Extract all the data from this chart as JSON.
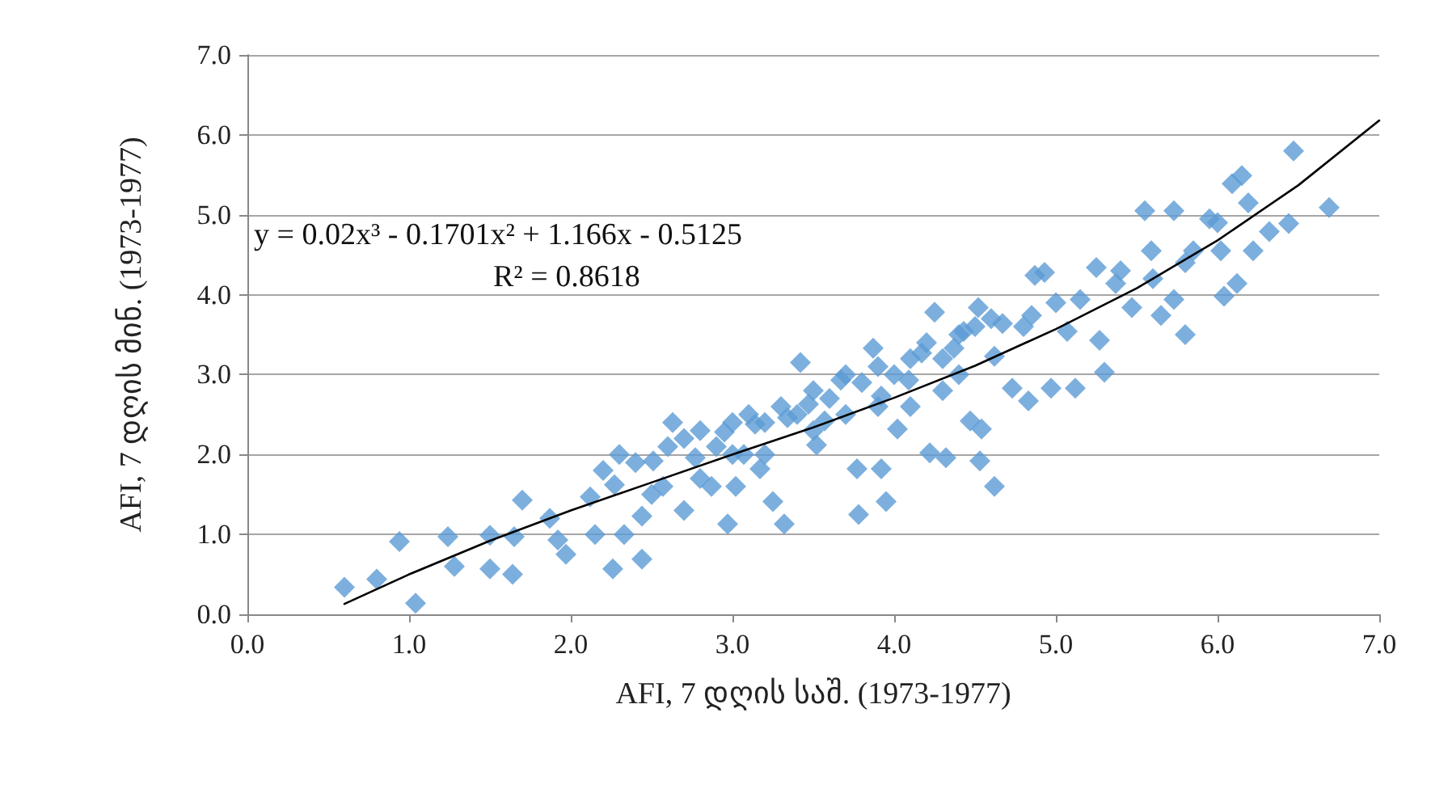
{
  "chart_data": {
    "type": "scatter",
    "xlabel": "AFI, 7 დღის საშ. (1973-1977)",
    "ylabel": "AFI, 7 დღის მინ. (1973-1977)",
    "annotations": [
      "y = 0.02x³ - 0.1701x² + 1.166x - 0.5125",
      "R² = 0.8618"
    ],
    "xlim": [
      0,
      7
    ],
    "xticks": [
      {
        "value": 0,
        "label": "0.0"
      },
      {
        "value": 1,
        "label": "1.0"
      },
      {
        "value": 2,
        "label": "2.0"
      },
      {
        "value": 3,
        "label": "3.0"
      },
      {
        "value": 4,
        "label": "4.0"
      },
      {
        "value": 5,
        "label": "5.0"
      },
      {
        "value": 6,
        "label": "6.0"
      },
      {
        "value": 7,
        "label": "7.0"
      }
    ],
    "ylim": [
      0,
      7
    ],
    "yticks": [
      {
        "value": 0,
        "label": "0.0"
      },
      {
        "value": 1,
        "label": "1.0"
      },
      {
        "value": 2,
        "label": "2.0"
      },
      {
        "value": 3,
        "label": "3.0"
      },
      {
        "value": 4,
        "label": "4.0"
      },
      {
        "value": 5,
        "label": "5.0"
      },
      {
        "value": 6,
        "label": "6.0"
      },
      {
        "value": 7,
        "label": "7.0"
      }
    ],
    "grid": "y",
    "series": [
      {
        "color": "#5b9bd5",
        "marker": "diamond",
        "x": [
          0.6,
          0.8,
          0.94,
          1.04,
          1.24,
          1.28,
          1.5,
          1.5,
          1.64,
          1.7,
          1.65,
          1.92,
          1.97,
          1.87,
          2.12,
          2.15,
          2.27,
          2.26,
          2.33,
          2.44,
          2.44,
          2.3,
          2.51,
          2.57,
          2.63,
          2.7,
          2.77,
          2.87,
          2.95,
          2.97,
          3.02,
          3.07,
          3.14,
          3.17,
          3.25,
          3.32,
          3.42,
          3.34,
          3.47,
          3.52,
          3.57,
          3.67,
          3.77,
          3.78,
          3.87,
          3.92,
          3.95,
          3.92,
          4.02,
          4.09,
          4.17,
          4.22,
          4.25,
          4.32,
          4.37,
          4.43,
          4.47,
          4.52,
          4.54,
          4.53,
          4.62,
          4.62,
          4.67,
          4.73,
          4.85,
          4.87,
          4.93,
          4.83,
          4.97,
          5.07,
          5.12,
          5.15,
          5.25,
          5.27,
          5.3,
          5.37,
          5.47,
          5.55,
          5.59,
          5.65,
          5.73,
          5.73,
          5.8,
          5.85,
          5.95,
          6.02,
          6.04,
          6.12,
          6.09,
          6.15,
          6.19,
          6.22,
          6.32,
          6.44,
          6.47,
          6.69,
          2.2,
          2.4,
          2.6,
          2.7,
          2.8,
          2.9,
          3.0,
          3.1,
          3.2,
          3.3,
          3.4,
          3.5,
          3.6,
          3.7,
          3.8,
          3.9,
          4.0,
          4.1,
          4.2,
          4.3,
          4.4,
          4.5,
          4.6,
          4.8,
          2.5,
          2.8,
          3.0,
          3.2,
          3.5,
          3.7,
          3.9,
          4.1,
          4.3,
          4.4,
          5.0,
          5.4,
          5.6,
          5.8,
          6.0
        ],
        "values": [
          0.34,
          0.44,
          0.91,
          0.14,
          0.97,
          0.6,
          0.99,
          0.57,
          0.5,
          1.43,
          0.97,
          0.93,
          0.75,
          1.2,
          1.47,
          1.0,
          1.62,
          0.57,
          1.0,
          0.69,
          1.23,
          2.0,
          1.92,
          1.6,
          2.4,
          1.3,
          1.96,
          1.6,
          2.28,
          1.13,
          1.6,
          2.0,
          2.38,
          1.82,
          1.41,
          1.13,
          3.15,
          2.46,
          2.63,
          2.12,
          2.42,
          2.93,
          1.82,
          1.25,
          3.33,
          2.73,
          1.41,
          1.82,
          2.32,
          2.93,
          3.27,
          2.02,
          3.78,
          1.96,
          3.33,
          3.54,
          2.42,
          3.84,
          2.32,
          1.92,
          3.23,
          1.6,
          3.64,
          2.83,
          3.74,
          4.24,
          4.28,
          2.67,
          2.83,
          3.54,
          2.83,
          3.94,
          4.34,
          3.43,
          3.03,
          4.14,
          3.84,
          5.05,
          4.55,
          3.74,
          5.05,
          3.94,
          3.5,
          4.55,
          4.95,
          4.55,
          3.98,
          4.14,
          5.39,
          5.49,
          5.15,
          4.55,
          4.79,
          4.89,
          5.8,
          5.09,
          1.8,
          1.9,
          2.1,
          2.2,
          2.3,
          2.1,
          2.4,
          2.5,
          2.4,
          2.6,
          2.5,
          2.8,
          2.7,
          3.0,
          2.9,
          3.1,
          3.0,
          3.2,
          3.4,
          3.2,
          3.5,
          3.6,
          3.7,
          3.6,
          1.5,
          1.7,
          2.0,
          2.0,
          2.3,
          2.5,
          2.6,
          2.6,
          2.8,
          3.0,
          3.9,
          4.3,
          4.2,
          4.4,
          4.9
        ]
      },
      {
        "type": "line",
        "color": "#000000",
        "marker": "none",
        "line_style": "solid",
        "x": [
          0.6,
          1,
          1.5,
          2,
          2.5,
          3,
          3.5,
          4,
          4.5,
          5,
          5.5,
          6,
          6.5,
          7
        ],
        "values": [
          0.13,
          0.5,
          0.92,
          1.3,
          1.65,
          2.0,
          2.34,
          2.71,
          3.11,
          3.57,
          4.08,
          4.68,
          5.37,
          6.18
        ]
      }
    ]
  }
}
